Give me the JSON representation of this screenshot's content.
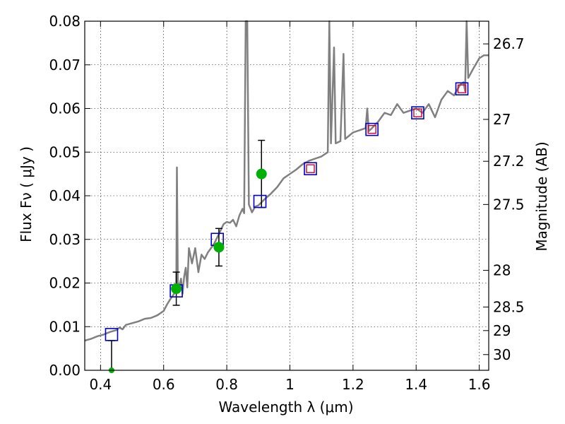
{
  "chart_data": {
    "type": "scatter",
    "xlabel": "Wavelength  λ (μm)",
    "ylabel": "Flux  Fν  ( μJy )",
    "ylabel_right": "Magnitude (AB)",
    "xlim": [
      0.35,
      1.63
    ],
    "ylim": [
      0.0,
      0.08
    ],
    "grid": true,
    "x_ticks": [
      {
        "value": 0.4,
        "label": "0.4"
      },
      {
        "value": 0.6,
        "label": "0.6"
      },
      {
        "value": 0.8,
        "label": "0.8"
      },
      {
        "value": 1.0,
        "label": "1"
      },
      {
        "value": 1.2,
        "label": "1.2"
      },
      {
        "value": 1.4,
        "label": "1.4"
      },
      {
        "value": 1.6,
        "label": "1.6"
      }
    ],
    "y_ticks": [
      {
        "value": 0.0,
        "label": "0.00"
      },
      {
        "value": 0.01,
        "label": "0.01"
      },
      {
        "value": 0.02,
        "label": "0.02"
      },
      {
        "value": 0.03,
        "label": "0.03"
      },
      {
        "value": 0.04,
        "label": "0.04"
      },
      {
        "value": 0.05,
        "label": "0.05"
      },
      {
        "value": 0.06,
        "label": "0.06"
      },
      {
        "value": 0.07,
        "label": "0.07"
      },
      {
        "value": 0.08,
        "label": "0.08"
      }
    ],
    "right_ticks": [
      {
        "flux": 0.0748,
        "label": "26.7"
      },
      {
        "flux": 0.0575,
        "label": "27"
      },
      {
        "flux": 0.0479,
        "label": "27.2"
      },
      {
        "flux": 0.038,
        "label": "27.5"
      },
      {
        "flux": 0.0229,
        "label": "28"
      },
      {
        "flux": 0.0145,
        "label": "28.5"
      },
      {
        "flux": 0.0091,
        "label": "29"
      },
      {
        "flux": 0.0036,
        "label": "30"
      }
    ],
    "sed_color": "#808080",
    "sed_spectrum": [
      [
        0.35,
        0.0068
      ],
      [
        0.37,
        0.0072
      ],
      [
        0.39,
        0.0078
      ],
      [
        0.41,
        0.0082
      ],
      [
        0.43,
        0.0088
      ],
      [
        0.45,
        0.0092
      ],
      [
        0.46,
        0.0098
      ],
      [
        0.47,
        0.0094
      ],
      [
        0.48,
        0.0104
      ],
      [
        0.5,
        0.0108
      ],
      [
        0.52,
        0.0112
      ],
      [
        0.54,
        0.0118
      ],
      [
        0.56,
        0.012
      ],
      [
        0.58,
        0.0126
      ],
      [
        0.6,
        0.0136
      ],
      [
        0.61,
        0.015
      ],
      [
        0.62,
        0.0162
      ],
      [
        0.63,
        0.0172
      ],
      [
        0.635,
        0.0178
      ],
      [
        0.64,
        0.0185
      ],
      [
        0.642,
        0.0465
      ],
      [
        0.645,
        0.02
      ],
      [
        0.65,
        0.0195
      ],
      [
        0.655,
        0.021
      ],
      [
        0.66,
        0.0175
      ],
      [
        0.665,
        0.0215
      ],
      [
        0.67,
        0.0235
      ],
      [
        0.675,
        0.019
      ],
      [
        0.68,
        0.028
      ],
      [
        0.69,
        0.0245
      ],
      [
        0.7,
        0.028
      ],
      [
        0.71,
        0.0225
      ],
      [
        0.72,
        0.0265
      ],
      [
        0.73,
        0.0255
      ],
      [
        0.74,
        0.027
      ],
      [
        0.75,
        0.028
      ],
      [
        0.76,
        0.029
      ],
      [
        0.77,
        0.0305
      ],
      [
        0.78,
        0.032
      ],
      [
        0.79,
        0.0335
      ],
      [
        0.8,
        0.034
      ],
      [
        0.81,
        0.0338
      ],
      [
        0.82,
        0.0345
      ],
      [
        0.83,
        0.033
      ],
      [
        0.84,
        0.0355
      ],
      [
        0.85,
        0.037
      ],
      [
        0.855,
        0.036
      ],
      [
        0.86,
        0.08
      ],
      [
        0.865,
        0.08
      ],
      [
        0.87,
        0.038
      ],
      [
        0.88,
        0.0362
      ],
      [
        0.89,
        0.0375
      ],
      [
        0.9,
        0.0378
      ],
      [
        0.91,
        0.0385
      ],
      [
        0.92,
        0.0392
      ],
      [
        0.94,
        0.0405
      ],
      [
        0.96,
        0.042
      ],
      [
        0.98,
        0.044
      ],
      [
        1.0,
        0.045
      ],
      [
        1.02,
        0.046
      ],
      [
        1.04,
        0.0472
      ],
      [
        1.06,
        0.048
      ],
      [
        1.08,
        0.0485
      ],
      [
        1.1,
        0.049
      ],
      [
        1.12,
        0.05
      ],
      [
        1.125,
        0.08
      ],
      [
        1.13,
        0.052
      ],
      [
        1.14,
        0.074
      ],
      [
        1.145,
        0.052
      ],
      [
        1.16,
        0.0525
      ],
      [
        1.17,
        0.0725
      ],
      [
        1.175,
        0.053
      ],
      [
        1.2,
        0.0545
      ],
      [
        1.22,
        0.055
      ],
      [
        1.24,
        0.0555
      ],
      [
        1.245,
        0.06
      ],
      [
        1.25,
        0.0548
      ],
      [
        1.26,
        0.0555
      ],
      [
        1.28,
        0.057
      ],
      [
        1.3,
        0.059
      ],
      [
        1.32,
        0.0585
      ],
      [
        1.34,
        0.061
      ],
      [
        1.36,
        0.059
      ],
      [
        1.38,
        0.0595
      ],
      [
        1.4,
        0.06
      ],
      [
        1.42,
        0.059
      ],
      [
        1.44,
        0.061
      ],
      [
        1.46,
        0.058
      ],
      [
        1.48,
        0.062
      ],
      [
        1.5,
        0.064
      ],
      [
        1.52,
        0.063
      ],
      [
        1.54,
        0.0655
      ],
      [
        1.55,
        0.066
      ],
      [
        1.555,
        0.064
      ],
      [
        1.56,
        0.08
      ],
      [
        1.565,
        0.067
      ],
      [
        1.58,
        0.069
      ],
      [
        1.6,
        0.0715
      ],
      [
        1.615,
        0.0722
      ],
      [
        1.63,
        0.0722
      ]
    ],
    "model_color_outer": "#0000cc",
    "model_color_inner": "#cc0033",
    "model_points": [
      {
        "x": 0.435,
        "y": 0.0082,
        "inner": false
      },
      {
        "x": 0.64,
        "y": 0.0182,
        "inner": false
      },
      {
        "x": 0.77,
        "y": 0.03,
        "inner": false
      },
      {
        "x": 0.905,
        "y": 0.0387,
        "inner": false
      },
      {
        "x": 1.065,
        "y": 0.0462,
        "inner": true
      },
      {
        "x": 1.26,
        "y": 0.0552,
        "inner": true
      },
      {
        "x": 1.405,
        "y": 0.059,
        "inner": true
      },
      {
        "x": 1.545,
        "y": 0.0645,
        "inner": true
      }
    ],
    "obs_color": "#00b000",
    "observed_points": [
      {
        "x": 0.435,
        "y": 0.0,
        "err": 0.0068
      },
      {
        "x": 0.64,
        "y": 0.0187,
        "err": 0.0038
      },
      {
        "x": 0.775,
        "y": 0.0282,
        "err": 0.0043
      },
      {
        "x": 0.91,
        "y": 0.045,
        "err": 0.0077
      }
    ]
  }
}
